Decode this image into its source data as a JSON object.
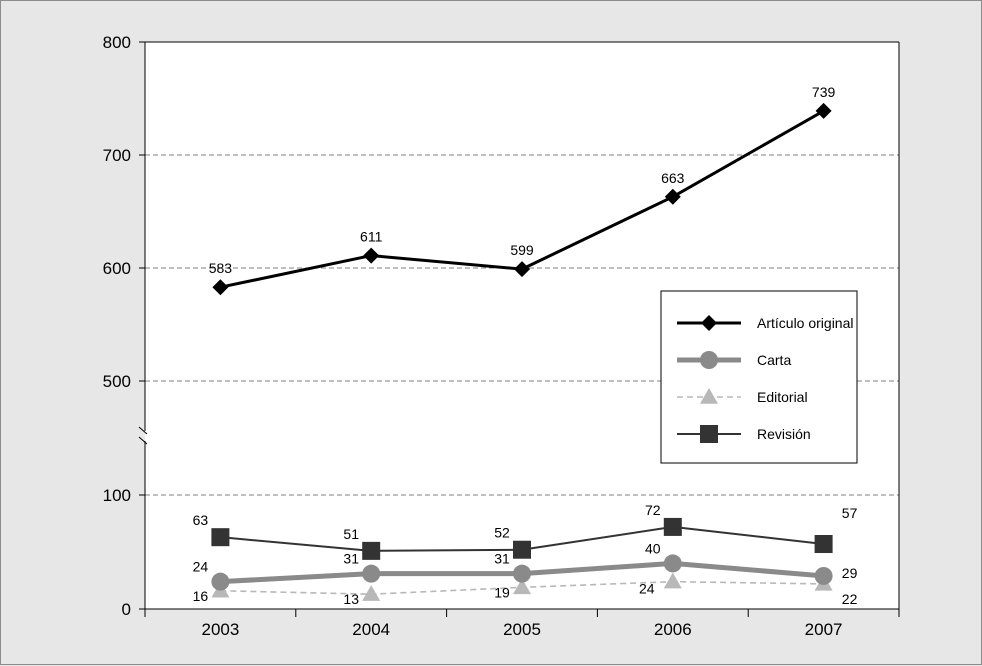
{
  "chart_data": {
    "type": "line",
    "title": "",
    "xlabel": "",
    "ylabel": "",
    "categories": [
      "2003",
      "2004",
      "2005",
      "2006",
      "2007"
    ],
    "y_axis": {
      "broken": true,
      "lower_range": [
        0,
        100
      ],
      "upper_range": [
        500,
        800
      ],
      "ticks": [
        "0",
        "100",
        "500",
        "600",
        "700",
        "800"
      ]
    },
    "grid": "horizontal dashed",
    "legend_position": "right, middle",
    "series": [
      {
        "name": "Artículo original",
        "values": [
          583,
          611,
          599,
          663,
          739
        ],
        "labels": [
          "583",
          "611",
          "599",
          "663",
          "739"
        ],
        "color": "#000000",
        "marker": "diamond"
      },
      {
        "name": "Carta",
        "values": [
          24,
          31,
          31,
          40,
          29
        ],
        "labels": [
          "24",
          "31",
          "31",
          "40",
          "29"
        ],
        "color": "#8a8a8a",
        "marker": "circle"
      },
      {
        "name": "Editorial",
        "values": [
          16,
          13,
          19,
          24,
          22
        ],
        "labels": [
          "16",
          "13",
          "19",
          "24",
          "22"
        ],
        "color": "#b8b8b8",
        "marker": "triangle"
      },
      {
        "name": "Revisión",
        "values": [
          63,
          51,
          52,
          72,
          57
        ],
        "labels": [
          "63",
          "51",
          "52",
          "72",
          "57"
        ],
        "color": "#333333",
        "marker": "square"
      }
    ]
  }
}
